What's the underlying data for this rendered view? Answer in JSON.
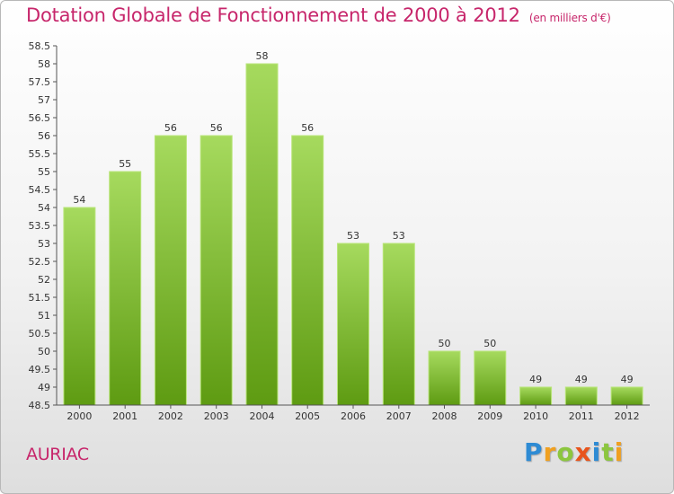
{
  "chart_data": {
    "type": "bar",
    "title": "Dotation Globale de Fonctionnement de 2000 à 2012",
    "unit_note": "(en milliers d'€)",
    "categories": [
      "2000",
      "2001",
      "2002",
      "2003",
      "2004",
      "2005",
      "2006",
      "2007",
      "2008",
      "2009",
      "2010",
      "2011",
      "2012"
    ],
    "values": [
      54,
      55,
      56,
      56,
      58,
      56,
      53,
      53,
      50,
      50,
      49,
      49,
      49
    ],
    "data_labels": [
      "54",
      "55",
      "56",
      "56",
      "58",
      "56",
      "53",
      "53",
      "50",
      "50",
      "49",
      "49",
      "49"
    ],
    "ylim": [
      48.5,
      58.5
    ],
    "yticks": [
      "48.5",
      "49",
      "49.5",
      "50",
      "50.5",
      "51",
      "51.5",
      "52",
      "52.5",
      "53",
      "53.5",
      "54",
      "54.5",
      "55",
      "55.5",
      "56",
      "56.5",
      "57",
      "57.5",
      "58",
      "58.5"
    ],
    "xlabel": "",
    "ylabel": "",
    "grid": false,
    "legend": "none"
  },
  "commune": "AURIAC",
  "brand": {
    "letters": [
      "P",
      "r",
      "o",
      "x",
      "i",
      "t",
      "i"
    ],
    "colors": [
      "#2e8bd4",
      "#f0a020",
      "#8cc63f",
      "#e8541c",
      "#2e8bd4",
      "#8cc63f",
      "#f0a020"
    ]
  },
  "colors": {
    "title": "#c7266b",
    "bar_light": "#a3d85a",
    "bar_dark": "#5f9c14",
    "axis": "#555555"
  }
}
